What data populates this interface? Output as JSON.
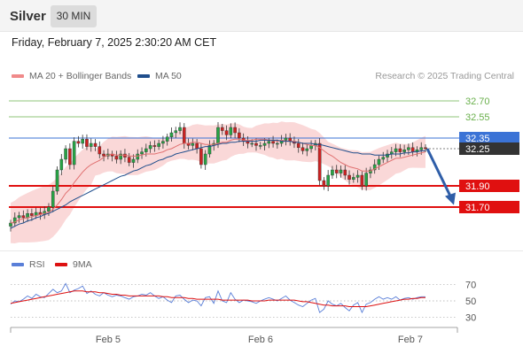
{
  "header": {
    "instrument": "Silver",
    "timeframe": "30 MIN",
    "timestamp": "Friday, February 7, 2025 2:30:20 AM CET"
  },
  "legend": {
    "ma20": "MA 20 + Bollinger Bands",
    "ma50": "MA 50",
    "credit": "Research © 2025 Trading Central",
    "rsi": "RSI",
    "ma9": "9MA"
  },
  "colors": {
    "up": "#27a345",
    "down": "#cc2222",
    "ma20": "#e07070",
    "ma50": "#1f4e8c",
    "band": "#f8c8c8",
    "resistance": "#6ab04c",
    "support": "#e01010",
    "pivot": "#3b73d6",
    "current": "#333333",
    "rsi": "#5a7fd8",
    "ma9": "#dd1111",
    "arrow": "#2f5ea8"
  },
  "chart_data": [
    {
      "type": "candlestick",
      "ylim": [
        31.4,
        32.85
      ],
      "xlabels": [
        "Feb 5",
        "Feb 6",
        "Feb 7"
      ],
      "levels": [
        {
          "label": "32.70",
          "value": 32.7,
          "kind": "resistance"
        },
        {
          "label": "32.55",
          "value": 32.55,
          "kind": "resistance"
        },
        {
          "label": "32.35",
          "value": 32.35,
          "kind": "pivot"
        },
        {
          "label": "32.25",
          "value": 32.25,
          "kind": "current"
        },
        {
          "label": "31.90",
          "value": 31.9,
          "kind": "support"
        },
        {
          "label": "31.70",
          "value": 31.7,
          "kind": "support"
        }
      ],
      "close": [
        31.55,
        31.6,
        31.62,
        31.6,
        31.64,
        31.62,
        31.65,
        31.63,
        31.66,
        31.7,
        31.85,
        32.05,
        32.15,
        32.25,
        32.1,
        32.32,
        32.3,
        32.34,
        32.27,
        32.3,
        32.27,
        32.2,
        32.18,
        32.2,
        32.18,
        32.15,
        32.2,
        32.17,
        32.12,
        32.15,
        32.2,
        32.22,
        32.25,
        32.28,
        32.27,
        32.3,
        32.32,
        32.36,
        32.4,
        32.42,
        32.45,
        32.3,
        32.28,
        32.3,
        32.25,
        32.1,
        32.2,
        32.28,
        32.3,
        32.45,
        32.42,
        32.38,
        32.45,
        32.4,
        32.35,
        32.32,
        32.3,
        32.3,
        32.28,
        32.28,
        32.3,
        32.32,
        32.3,
        32.3,
        32.33,
        32.35,
        32.32,
        32.3,
        32.26,
        32.23,
        32.25,
        32.28,
        32.3,
        31.95,
        31.9,
        32.0,
        32.05,
        32.02,
        32.05,
        32.0,
        31.96,
        31.98,
        32.0,
        31.9,
        32.02,
        32.05,
        32.1,
        32.15,
        32.17,
        32.2,
        32.22,
        32.25,
        32.22,
        32.24,
        32.26,
        32.22,
        32.24,
        32.26,
        32.25
      ],
      "ma20": [
        31.55,
        31.56,
        31.58,
        31.59,
        31.6,
        31.61,
        31.62,
        31.63,
        31.64,
        31.65,
        31.68,
        31.72,
        31.77,
        31.83,
        31.87,
        31.93,
        31.98,
        32.03,
        32.07,
        32.1,
        32.12,
        32.14,
        32.17,
        32.19,
        32.2,
        32.19,
        32.19,
        32.19,
        32.18,
        32.18,
        32.18,
        32.19,
        32.2,
        32.2,
        32.2,
        32.21,
        32.22,
        32.24,
        32.25,
        32.27,
        32.29,
        32.3,
        32.3,
        32.31,
        32.31,
        32.3,
        32.29,
        32.29,
        32.29,
        32.3,
        32.31,
        32.31,
        32.33,
        32.34,
        32.34,
        32.33,
        32.33,
        32.33,
        32.34,
        32.34,
        32.34,
        32.33,
        32.33,
        32.32,
        32.33,
        32.32,
        32.32,
        32.32,
        32.31,
        32.3,
        32.29,
        32.28,
        32.28,
        32.26,
        32.23,
        32.2,
        32.18,
        32.15,
        32.12,
        32.1,
        32.08,
        32.07,
        32.06,
        32.04,
        32.04,
        32.04,
        32.06,
        32.08,
        32.1,
        32.12,
        32.14,
        32.16,
        32.16,
        32.17,
        32.18,
        32.19,
        32.2,
        32.21,
        32.22
      ],
      "ma50": [
        31.5,
        31.52,
        31.54,
        31.55,
        31.57,
        31.58,
        31.6,
        31.61,
        31.63,
        31.64,
        31.66,
        31.68,
        31.7,
        31.72,
        31.75,
        31.77,
        31.79,
        31.81,
        31.83,
        31.85,
        31.87,
        31.89,
        31.91,
        31.93,
        31.95,
        31.97,
        31.99,
        32.0,
        32.02,
        32.04,
        32.05,
        32.07,
        32.09,
        32.1,
        32.12,
        32.14,
        32.15,
        32.17,
        32.18,
        32.2,
        32.21,
        32.22,
        32.23,
        32.24,
        32.25,
        32.26,
        32.27,
        32.27,
        32.28,
        32.29,
        32.3,
        32.3,
        32.31,
        32.31,
        32.32,
        32.32,
        32.32,
        32.32,
        32.32,
        32.33,
        32.33,
        32.33,
        32.33,
        32.33,
        32.32,
        32.32,
        32.32,
        32.31,
        32.31,
        32.3,
        32.3,
        32.3,
        32.29,
        32.29,
        32.28,
        32.27,
        32.26,
        32.25,
        32.24,
        32.23,
        32.22,
        32.21,
        32.21,
        32.2,
        32.2,
        32.2,
        32.19,
        32.19,
        32.19,
        32.19,
        32.2,
        32.2,
        32.2,
        32.21,
        32.21,
        32.22,
        32.22,
        32.23,
        32.23
      ]
    },
    {
      "type": "line",
      "name": "rsi-panel",
      "ylim": [
        20,
        80
      ],
      "yticks": [
        "70",
        "50",
        "30"
      ],
      "rsi": [
        46,
        50,
        49,
        52,
        56,
        53,
        58,
        55,
        54,
        59,
        64,
        60,
        62,
        71,
        60,
        63,
        65,
        68,
        59,
        62,
        58,
        56,
        60,
        57,
        55,
        57,
        56,
        54,
        52,
        55,
        56,
        58,
        57,
        60,
        56,
        53,
        55,
        51,
        48,
        56,
        57,
        52,
        48,
        51,
        50,
        44,
        54,
        55,
        47,
        62,
        50,
        48,
        60,
        52,
        48,
        51,
        50,
        49,
        47,
        50,
        52,
        54,
        52,
        50,
        53,
        56,
        51,
        48,
        45,
        43,
        47,
        51,
        53,
        36,
        40,
        50,
        46,
        44,
        47,
        42,
        38,
        45,
        48,
        36,
        46,
        48,
        52,
        55,
        52,
        54,
        52,
        55,
        51,
        53,
        54,
        52,
        54,
        55,
        55
      ],
      "ma9": [
        47,
        48,
        49,
        50,
        51,
        52,
        53,
        54,
        55,
        56,
        57,
        58,
        59,
        60,
        61,
        62,
        62,
        62,
        61,
        61,
        61,
        60,
        60,
        59,
        58,
        58,
        57,
        57,
        56,
        56,
        56,
        56,
        56,
        56,
        56,
        56,
        55,
        55,
        54,
        54,
        54,
        54,
        53,
        53,
        52,
        52,
        52,
        52,
        52,
        52,
        51,
        51,
        51,
        51,
        51,
        51,
        51,
        50,
        50,
        50,
        50,
        51,
        51,
        51,
        51,
        51,
        51,
        51,
        50,
        49,
        49,
        48,
        47,
        46,
        45,
        45,
        44,
        44,
        44,
        44,
        43,
        43,
        43,
        43,
        43,
        44,
        45,
        46,
        47,
        48,
        49,
        50,
        51,
        52,
        52,
        53,
        53,
        54,
        54
      ]
    }
  ]
}
